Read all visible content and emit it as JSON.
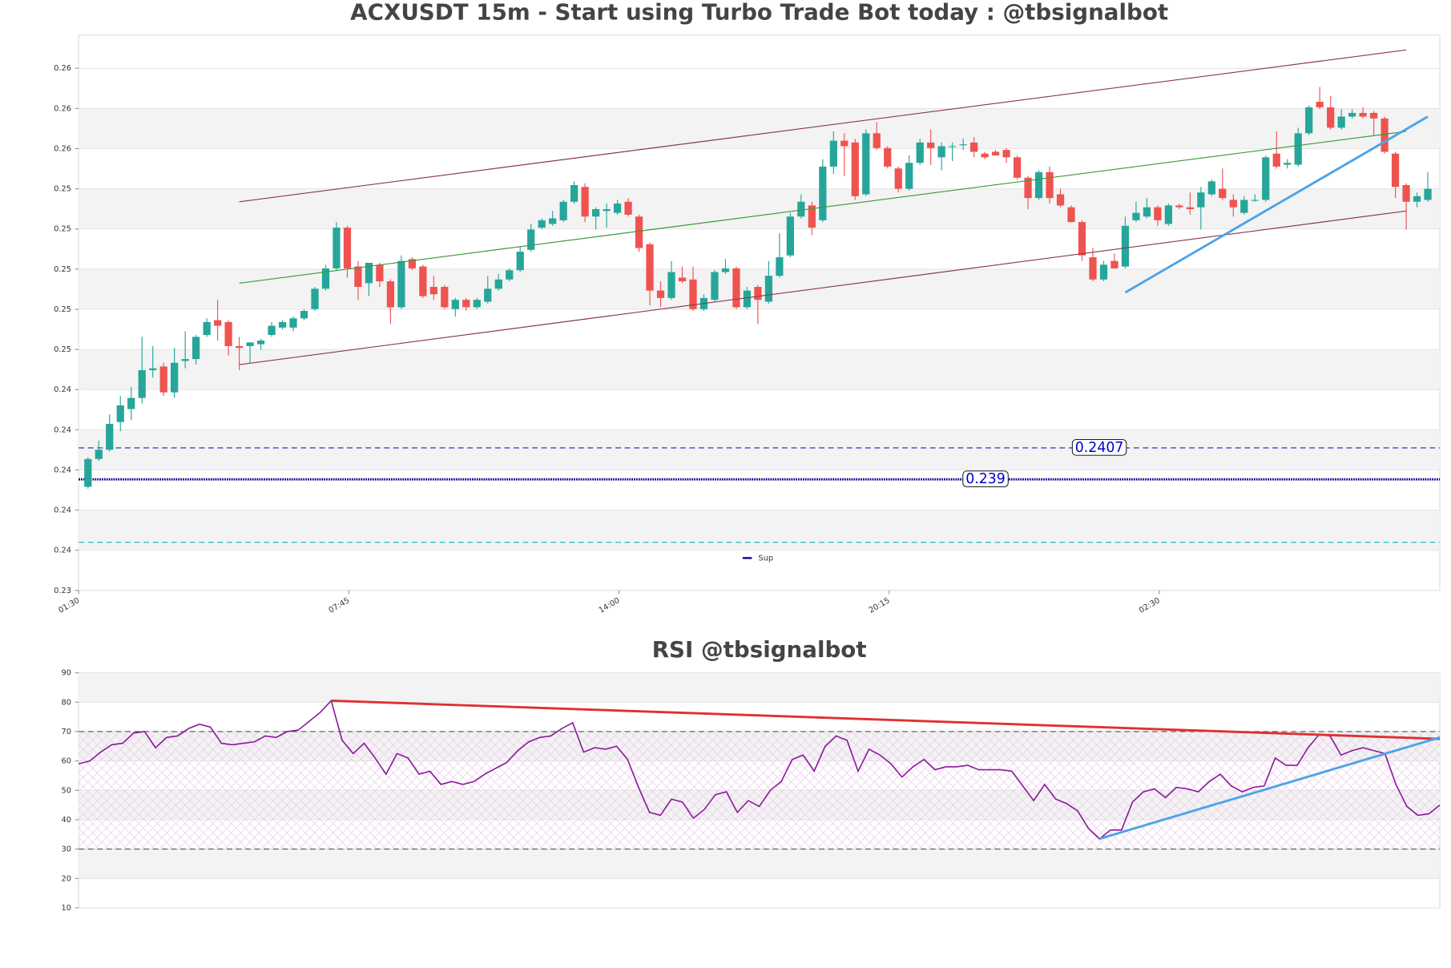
{
  "chart_data": [
    {
      "type": "candlestick",
      "title": "ACXUSDT 15m - Start using Turbo Trade Bot today : @tbsignalbot",
      "categories": [
        "01:30",
        null,
        null,
        null,
        null,
        null,
        null,
        null,
        null,
        null,
        null,
        null,
        null,
        null,
        null,
        null,
        null,
        null,
        null,
        null,
        null,
        null,
        null,
        null,
        null,
        "07:45",
        null,
        null,
        null,
        null,
        null,
        null,
        null,
        null,
        null,
        null,
        null,
        null,
        null,
        null,
        null,
        null,
        null,
        null,
        null,
        null,
        null,
        null,
        null,
        null,
        "14:00",
        null,
        null,
        null,
        null,
        null,
        null,
        null,
        null,
        null,
        null,
        null,
        null,
        null,
        null,
        null,
        null,
        null,
        null,
        null,
        null,
        null,
        null,
        null,
        null,
        "20:15",
        null,
        null,
        null,
        null,
        null,
        null,
        null,
        null,
        null,
        null,
        null,
        null,
        null,
        null,
        null,
        null,
        null,
        null,
        null,
        null,
        null,
        null,
        null,
        null,
        "02:30",
        null,
        null,
        null,
        null,
        null,
        null,
        null,
        null,
        null,
        null,
        null,
        null,
        null,
        null,
        null,
        null,
        null,
        null,
        null,
        null,
        null,
        null,
        null,
        null
      ],
      "open": [
        0.2386,
        0.2401,
        0.2406,
        0.2421,
        0.2428,
        0.2434,
        0.2449,
        0.2451,
        0.2437,
        0.2454,
        0.2455,
        0.2468,
        0.2476,
        0.2475,
        0.2462,
        0.2462,
        0.2463,
        0.2468,
        0.2472,
        0.2472,
        0.2477,
        0.2482,
        0.2493,
        0.2504,
        0.2526,
        0.2505,
        0.2496,
        0.2506,
        0.2497,
        0.2483,
        0.2509,
        0.2505,
        0.2494,
        0.2494,
        0.2482,
        0.2487,
        0.2483,
        0.2486,
        0.2493,
        0.2498,
        0.2503,
        0.2514,
        0.2526,
        0.2528,
        0.253,
        0.254,
        0.2548,
        0.2532,
        0.2535,
        0.2534,
        0.254,
        0.2532,
        0.2517,
        0.2492,
        0.2488,
        0.2499,
        0.2498,
        0.2482,
        0.2487,
        0.2502,
        0.2504,
        0.2483,
        0.2494,
        0.2486,
        0.25,
        0.2511,
        0.2532,
        0.2538,
        0.253,
        0.2559,
        0.2573,
        0.2572,
        0.2544,
        0.2577,
        0.2569,
        0.2558,
        0.2547,
        0.2561,
        0.2572,
        0.2564,
        0.257,
        0.2571,
        0.2572,
        0.2566,
        0.2567,
        0.2568,
        0.2564,
        0.2553,
        0.2542,
        0.2556,
        0.2544,
        0.2537,
        0.2529,
        0.251,
        0.2498,
        0.2508,
        0.2505,
        0.253,
        0.2532,
        0.2537,
        0.2528,
        0.2538,
        0.2537,
        0.2537,
        0.2544,
        0.2547,
        0.2541,
        0.2534,
        0.2541,
        0.2541,
        0.2566,
        0.256,
        0.256,
        0.2577,
        0.2594,
        0.2591,
        0.258,
        0.2586,
        0.2588,
        0.2588,
        0.2585,
        0.2566,
        0.2549,
        0.254,
        0.2541
      ],
      "high": [
        0.2402,
        0.2411,
        0.2425,
        0.2435,
        0.244,
        0.2467,
        0.2462,
        0.2453,
        0.2461,
        0.247,
        0.2468,
        0.2477,
        0.2487,
        0.2476,
        0.2467,
        0.2464,
        0.2466,
        0.2475,
        0.2476,
        0.2478,
        0.2482,
        0.2494,
        0.2506,
        0.2529,
        0.2527,
        0.2508,
        0.2507,
        0.2507,
        0.2498,
        0.2511,
        0.251,
        0.2506,
        0.25,
        0.2495,
        0.2488,
        0.2488,
        0.2488,
        0.25,
        0.2501,
        0.2504,
        0.2516,
        0.2528,
        0.2531,
        0.2535,
        0.2541,
        0.2551,
        0.255,
        0.2537,
        0.2539,
        0.2541,
        0.2542,
        0.2533,
        0.2518,
        0.2497,
        0.2508,
        0.2505,
        0.2505,
        0.249,
        0.2503,
        0.2509,
        0.2505,
        0.2494,
        0.2495,
        0.2508,
        0.2523,
        0.2534,
        0.2544,
        0.254,
        0.2563,
        0.2578,
        0.2577,
        0.2574,
        0.2579,
        0.2583,
        0.257,
        0.2559,
        0.2565,
        0.2574,
        0.2579,
        0.2572,
        0.2572,
        0.2574,
        0.2575,
        0.2567,
        0.2568,
        0.2569,
        0.2565,
        0.2554,
        0.2557,
        0.2559,
        0.2547,
        0.2538,
        0.253,
        0.2515,
        0.2508,
        0.2512,
        0.2532,
        0.254,
        0.2542,
        0.2538,
        0.2539,
        0.2539,
        0.2545,
        0.2548,
        0.2552,
        0.2558,
        0.2544,
        0.2543,
        0.2544,
        0.2565,
        0.2578,
        0.2563,
        0.258,
        0.2592,
        0.2602,
        0.2597,
        0.259,
        0.259,
        0.2591,
        0.2589,
        0.2586,
        0.2567,
        0.255,
        0.2545,
        0.2556
      ],
      "low": [
        0.2385,
        0.24,
        0.2405,
        0.2416,
        0.2422,
        0.2431,
        0.2445,
        0.2435,
        0.2434,
        0.245,
        0.2452,
        0.2467,
        0.2465,
        0.2457,
        0.2449,
        0.2453,
        0.246,
        0.2467,
        0.2471,
        0.247,
        0.2476,
        0.2481,
        0.2492,
        0.2503,
        0.2499,
        0.2487,
        0.2489,
        0.2494,
        0.2474,
        0.2482,
        0.2503,
        0.2488,
        0.2487,
        0.2482,
        0.2478,
        0.2481,
        0.2482,
        0.2485,
        0.2492,
        0.2497,
        0.2502,
        0.2513,
        0.2525,
        0.2527,
        0.2529,
        0.2539,
        0.2529,
        0.2525,
        0.2526,
        0.2533,
        0.2532,
        0.2513,
        0.2484,
        0.2483,
        0.2487,
        0.2496,
        0.2481,
        0.2481,
        0.2486,
        0.2501,
        0.2482,
        0.2482,
        0.2474,
        0.2485,
        0.2499,
        0.251,
        0.2531,
        0.2522,
        0.2529,
        0.2555,
        0.2554,
        0.2541,
        0.2543,
        0.2568,
        0.2558,
        0.2545,
        0.2546,
        0.256,
        0.256,
        0.2557,
        0.2562,
        0.2568,
        0.2564,
        0.2563,
        0.2565,
        0.2561,
        0.2552,
        0.2536,
        0.2541,
        0.2539,
        0.2537,
        0.2529,
        0.2508,
        0.2497,
        0.2497,
        0.2504,
        0.2504,
        0.2529,
        0.2531,
        0.2527,
        0.2527,
        0.2536,
        0.2533,
        0.2525,
        0.2543,
        0.2541,
        0.2532,
        0.2533,
        0.254,
        0.254,
        0.2558,
        0.2558,
        0.2559,
        0.2576,
        0.259,
        0.2579,
        0.2579,
        0.2585,
        0.2585,
        0.2576,
        0.2566,
        0.2542,
        0.2525,
        0.2537,
        0.254
      ],
      "close": [
        0.2401,
        0.2406,
        0.242,
        0.243,
        0.2434,
        0.2449,
        0.245,
        0.2437,
        0.2453,
        0.2455,
        0.2467,
        0.2475,
        0.2473,
        0.2462,
        0.2461,
        0.2464,
        0.2465,
        0.2473,
        0.2475,
        0.2477,
        0.2481,
        0.2493,
        0.2504,
        0.2526,
        0.2504,
        0.2494,
        0.2507,
        0.2497,
        0.2483,
        0.2508,
        0.2504,
        0.2489,
        0.249,
        0.2483,
        0.2487,
        0.2483,
        0.2487,
        0.2493,
        0.2498,
        0.2503,
        0.2513,
        0.2525,
        0.253,
        0.2531,
        0.254,
        0.2549,
        0.2532,
        0.2536,
        0.2536,
        0.2539,
        0.2533,
        0.2515,
        0.2492,
        0.2488,
        0.2502,
        0.2497,
        0.2482,
        0.2488,
        0.2502,
        0.2504,
        0.2483,
        0.2492,
        0.2487,
        0.25,
        0.251,
        0.2532,
        0.254,
        0.2526,
        0.2559,
        0.2573,
        0.257,
        0.2543,
        0.2577,
        0.2569,
        0.2559,
        0.2547,
        0.2561,
        0.2572,
        0.2569,
        0.257,
        0.257,
        0.2571,
        0.2567,
        0.2564,
        0.2565,
        0.2564,
        0.2553,
        0.2542,
        0.2556,
        0.2542,
        0.2538,
        0.2529,
        0.2511,
        0.2498,
        0.2506,
        0.2504,
        0.2527,
        0.2534,
        0.2537,
        0.253,
        0.2538,
        0.2537,
        0.2536,
        0.2545,
        0.2551,
        0.2542,
        0.2537,
        0.2541,
        0.2541,
        0.2564,
        0.2559,
        0.2561,
        0.2577,
        0.2591,
        0.2591,
        0.258,
        0.2586,
        0.2588,
        0.2586,
        0.2585,
        0.2567,
        0.2548,
        0.254,
        0.2543,
        0.2547
      ],
      "up_color": "#26a69a",
      "down_color": "#ef5350",
      "ylim": [
        0.233,
        0.263
      ],
      "yticks": [
        {
          "value": 0.233,
          "label": "0.23"
        },
        {
          "value": 0.23517,
          "label": "0.24"
        },
        {
          "value": 0.23734,
          "label": "0.24"
        },
        {
          "value": 0.23951,
          "label": "0.24"
        },
        {
          "value": 0.24168,
          "label": "0.24"
        },
        {
          "value": 0.24385,
          "label": "0.24"
        },
        {
          "value": 0.24602,
          "label": "0.25"
        },
        {
          "value": 0.24819,
          "label": "0.25"
        },
        {
          "value": 0.25036,
          "label": "0.25"
        },
        {
          "value": 0.25253,
          "label": "0.25"
        },
        {
          "value": 0.2547,
          "label": "0.25"
        },
        {
          "value": 0.25687,
          "label": "0.26"
        },
        {
          "value": 0.25904,
          "label": "0.26"
        },
        {
          "value": 0.26121,
          "label": "0.26"
        }
      ],
      "grid": true,
      "hlines": [
        {
          "value": 0.2407,
          "color": "#1f1fbf",
          "style": "dashed",
          "labeled": true
        },
        {
          "value": 0.239,
          "color": "#00008b",
          "style": "dotted",
          "labeled": true,
          "name": "Sup"
        },
        {
          "value": 0.2356,
          "color": "#17becf",
          "style": "dashed"
        }
      ],
      "trendlines": [
        {
          "color": "#8b3a4a",
          "width": 1,
          "x": [
            14,
            122
          ],
          "values": [
            0.254,
            0.2622
          ]
        },
        {
          "color": "#8b3a4a",
          "width": 1,
          "x": [
            14,
            122
          ],
          "values": [
            0.2452,
            0.2535
          ]
        },
        {
          "color": "#3a9a3a",
          "width": 1,
          "x": [
            14,
            122
          ],
          "values": [
            0.2496,
            0.2578
          ]
        },
        {
          "color": "#4da3e8",
          "width": 2.5,
          "x": [
            96,
            124
          ],
          "values": [
            0.2491,
            0.2586
          ]
        }
      ],
      "legend": "lower center"
    },
    {
      "type": "line",
      "title": "RSI @tbsignalbot",
      "series": [
        {
          "color": "#8b1a9b",
          "values": [
            59,
            60,
            63,
            65.5,
            66,
            69.5,
            70,
            64.5,
            68,
            68.5,
            71,
            72.5,
            71.5,
            66,
            65.5,
            66,
            66.5,
            68.5,
            68,
            70,
            70.5,
            73.5,
            76.5,
            80.5,
            67,
            62.5,
            66,
            61,
            55.5,
            62.5,
            61,
            55.5,
            56.5,
            52,
            53,
            52,
            53,
            55.5,
            57.5,
            59.5,
            63.5,
            66.5,
            68,
            68.5,
            71,
            73,
            63,
            64.5,
            64,
            65,
            60.5,
            51,
            42.5,
            41.5,
            47,
            46,
            40.5,
            43.5,
            48.5,
            49.5,
            42.5,
            46.5,
            44.5,
            50,
            53,
            60.5,
            62,
            56.5,
            65,
            68.5,
            67,
            56.5,
            64,
            62,
            59,
            54.5,
            58,
            60.5,
            57,
            58,
            58,
            58.5,
            57,
            57,
            57,
            56.5,
            51.5,
            46.5,
            52,
            47,
            45.5,
            43,
            37,
            33.5,
            36.5,
            36.5,
            46,
            49.5,
            50.5,
            47.5,
            51,
            50.5,
            49.5,
            53,
            55.5,
            51.5,
            49.5,
            51,
            51.5,
            61,
            58.5,
            58.5,
            64.5,
            69,
            68.5,
            62,
            63.5,
            64.5,
            63.5,
            62.5,
            52,
            44.5,
            41.5,
            42,
            45
          ]
        }
      ],
      "ylim": [
        10,
        90
      ],
      "yticks": [
        10,
        20,
        30,
        40,
        50,
        60,
        70,
        80,
        90
      ],
      "grid": true,
      "hlines": [
        {
          "value": 70,
          "color": "#555555",
          "style": "dashed"
        },
        {
          "value": 30,
          "color": "#555555",
          "style": "dashed"
        }
      ],
      "trendlines": [
        {
          "color": "#e03030",
          "width": 2.5,
          "x": [
            23,
            124
          ],
          "values": [
            80.5,
            67.5
          ]
        },
        {
          "color": "#4da3e8",
          "width": 2.5,
          "x": [
            93,
            124
          ],
          "values": [
            33.5,
            68
          ]
        }
      ]
    }
  ]
}
